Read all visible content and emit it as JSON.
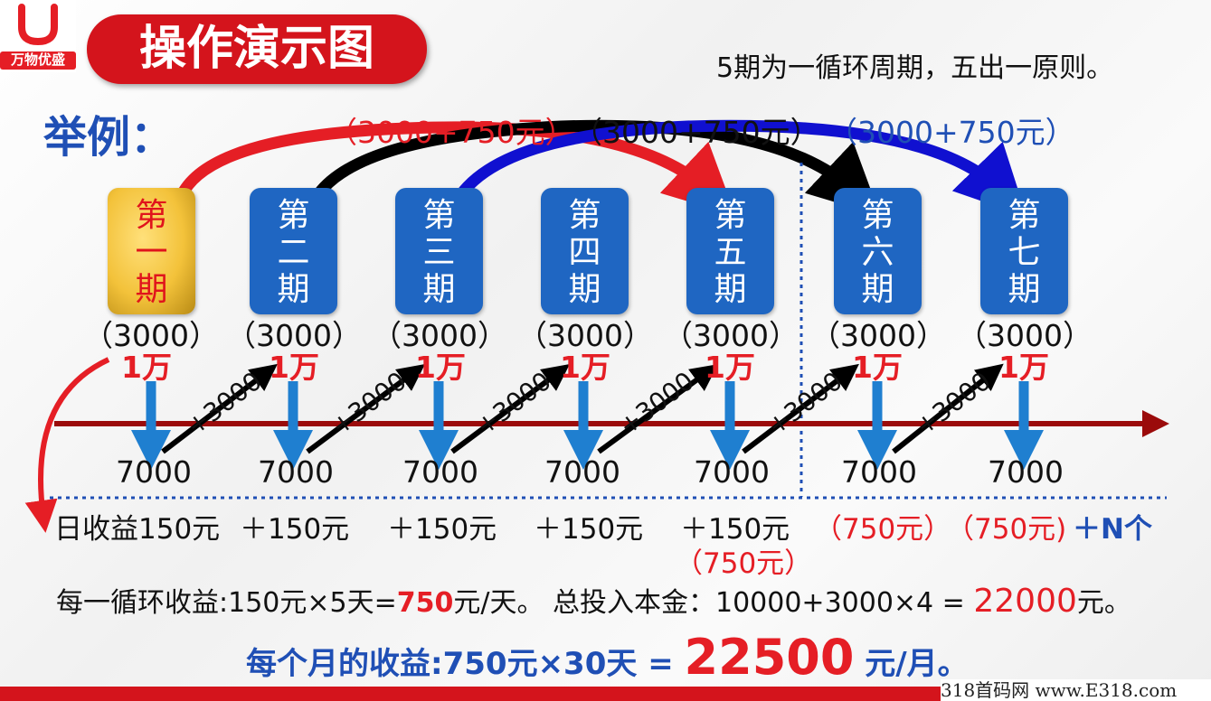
{
  "logo": {
    "brand_text": "万物优盛",
    "color": "#e51e25"
  },
  "title": "操作演示图",
  "rule": "5期为一循环周期，五出一原则。",
  "example_label": "举例：",
  "arc_labels": [
    {
      "text": "（3000+750元）",
      "color": "#e51e25"
    },
    {
      "text": "（3000+750元）",
      "color": "#111111"
    },
    {
      "text": "（3000+750元）",
      "color": "#1f4fb5"
    }
  ],
  "periods": [
    {
      "label": "第一期",
      "style": "gold"
    },
    {
      "label": "第二期",
      "style": "blue"
    },
    {
      "label": "第三期",
      "style": "blue"
    },
    {
      "label": "第四期",
      "style": "blue"
    },
    {
      "label": "第五期",
      "style": "blue"
    },
    {
      "label": "第六期",
      "style": "blue"
    },
    {
      "label": "第七期",
      "style": "blue"
    }
  ],
  "amounts": [
    "（3000）",
    "（3000）",
    "（3000）",
    "（3000）",
    "（3000）",
    "（3000）",
    "（3000）"
  ],
  "wan_labels": [
    "1万",
    "1万",
    "1万",
    "1万",
    "1万",
    "1万",
    "1万"
  ],
  "bottom_values": [
    "7000",
    "7000",
    "7000",
    "7000",
    "7000",
    "7000",
    "7000"
  ],
  "plus_labels": [
    "+3000",
    "+3000",
    "+3000",
    "+3000",
    "+3000",
    "+3000"
  ],
  "income": {
    "first": "日收益150元",
    "plus": [
      "＋150元",
      "＋150元",
      "＋150元",
      "＋150元"
    ],
    "fifth_extra": "（750元）",
    "sixth": "（750元）",
    "seventh": "（750元)",
    "more": "＋N个"
  },
  "summary1": {
    "a": "每一循环收益:150元×5天=",
    "b": "750",
    "c": "元/天。 总投入本金：10000+3000×4 = ",
    "d": "22000",
    "e": "元。"
  },
  "summary2": {
    "a": "每个月的收益:750元×30天 = ",
    "b": "22500",
    "c": " 元/月。"
  },
  "watermark": "318首码网 www.E318.com",
  "colors": {
    "red": "#e51e25",
    "blue": "#1f66c2",
    "dark_red_line": "#9b0b0b",
    "gold": "#f3c23a"
  }
}
